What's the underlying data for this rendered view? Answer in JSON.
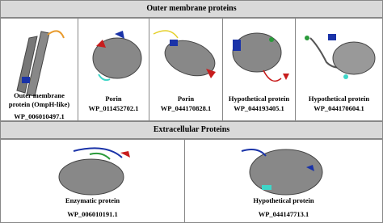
{
  "sections": [
    {
      "title": "Outer membrane proteins",
      "proteins": [
        {
          "name": "Outer membrane protein (OmpH-like)",
          "id": "WP_006010497.1"
        },
        {
          "name": "Porin",
          "id": "WP_011452702.1"
        },
        {
          "name": "Porin",
          "id": "WP_044170828.1"
        },
        {
          "name": "Hypothetical protein",
          "id": "WP_044193405.1"
        },
        {
          "name": "Hypothetical protein",
          "id": "WP_044170604.1"
        }
      ]
    },
    {
      "title": "Extracellular Proteins",
      "proteins": [
        {
          "name": "Enzymatic protein",
          "id": "WP_006010191.1"
        },
        {
          "name": "Hypothetical protein",
          "id": "WP_044147713.1"
        }
      ]
    }
  ]
}
